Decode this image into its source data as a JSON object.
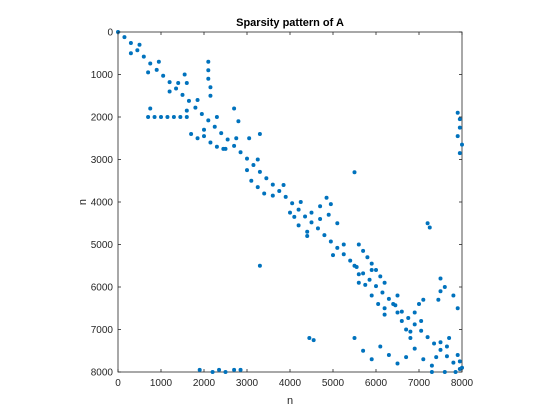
{
  "chart_data": {
    "type": "scatter",
    "title": "Sparsity pattern of A",
    "xlabel": "n",
    "ylabel": "n",
    "xlim": [
      0,
      8000
    ],
    "ylim": [
      0,
      8000
    ],
    "y_reversed": true,
    "xticks": [
      0,
      1000,
      2000,
      3000,
      4000,
      5000,
      6000,
      7000,
      8000
    ],
    "yticks": [
      0,
      1000,
      2000,
      3000,
      4000,
      5000,
      6000,
      7000,
      8000
    ],
    "tick_labels_x": [
      "0",
      "1000",
      "2000",
      "3000",
      "4000",
      "5000",
      "6000",
      "7000",
      "8000"
    ],
    "tick_labels_y": [
      "0",
      "1000",
      "2000",
      "3000",
      "4000",
      "5000",
      "6000",
      "7000",
      "8000"
    ],
    "grid": false,
    "marker_color": "#0072BD",
    "series": [
      {
        "values": [
          {
            "x": 0,
            "y": 0
          },
          {
            "x": 150,
            "y": 120
          },
          {
            "x": 300,
            "y": 260
          },
          {
            "x": 450,
            "y": 430
          },
          {
            "x": 600,
            "y": 580
          },
          {
            "x": 750,
            "y": 740
          },
          {
            "x": 900,
            "y": 890
          },
          {
            "x": 1050,
            "y": 1030
          },
          {
            "x": 1200,
            "y": 1180
          },
          {
            "x": 1350,
            "y": 1330
          },
          {
            "x": 1500,
            "y": 1480
          },
          {
            "x": 1650,
            "y": 1620
          },
          {
            "x": 1800,
            "y": 1780
          },
          {
            "x": 1950,
            "y": 1930
          },
          {
            "x": 2100,
            "y": 2080
          },
          {
            "x": 2250,
            "y": 2230
          },
          {
            "x": 2400,
            "y": 2380
          },
          {
            "x": 2550,
            "y": 2530
          },
          {
            "x": 2700,
            "y": 2680
          },
          {
            "x": 2850,
            "y": 2830
          },
          {
            "x": 3000,
            "y": 2980
          },
          {
            "x": 3150,
            "y": 3130
          },
          {
            "x": 3300,
            "y": 3290
          },
          {
            "x": 3450,
            "y": 3440
          },
          {
            "x": 3600,
            "y": 3590
          },
          {
            "x": 3750,
            "y": 3740
          },
          {
            "x": 3900,
            "y": 3880
          },
          {
            "x": 4050,
            "y": 4030
          },
          {
            "x": 4200,
            "y": 4180
          },
          {
            "x": 4350,
            "y": 4340
          },
          {
            "x": 4500,
            "y": 4480
          },
          {
            "x": 4650,
            "y": 4620
          },
          {
            "x": 4800,
            "y": 4780
          },
          {
            "x": 4950,
            "y": 4930
          },
          {
            "x": 5100,
            "y": 5080
          },
          {
            "x": 5250,
            "y": 5230
          },
          {
            "x": 5400,
            "y": 5380
          },
          {
            "x": 5550,
            "y": 5530
          },
          {
            "x": 5700,
            "y": 5680
          },
          {
            "x": 5850,
            "y": 5830
          },
          {
            "x": 6000,
            "y": 5980
          },
          {
            "x": 6150,
            "y": 6130
          },
          {
            "x": 6300,
            "y": 6280
          },
          {
            "x": 6450,
            "y": 6430
          },
          {
            "x": 6600,
            "y": 6580
          },
          {
            "x": 6750,
            "y": 6730
          },
          {
            "x": 6900,
            "y": 6880
          },
          {
            "x": 7050,
            "y": 7030
          },
          {
            "x": 7200,
            "y": 7180
          },
          {
            "x": 7350,
            "y": 7330
          },
          {
            "x": 7500,
            "y": 7480
          },
          {
            "x": 7650,
            "y": 7630
          },
          {
            "x": 7800,
            "y": 7780
          },
          {
            "x": 7950,
            "y": 7930
          },
          {
            "x": 300,
            "y": 500
          },
          {
            "x": 500,
            "y": 300
          },
          {
            "x": 700,
            "y": 950
          },
          {
            "x": 950,
            "y": 700
          },
          {
            "x": 1200,
            "y": 1400
          },
          {
            "x": 1400,
            "y": 1200
          },
          {
            "x": 1600,
            "y": 1850
          },
          {
            "x": 1850,
            "y": 1600
          },
          {
            "x": 2000,
            "y": 2300
          },
          {
            "x": 2300,
            "y": 2000
          },
          {
            "x": 2500,
            "y": 2750
          },
          {
            "x": 2750,
            "y": 2500
          },
          {
            "x": 3000,
            "y": 3250
          },
          {
            "x": 3250,
            "y": 3000
          },
          {
            "x": 3600,
            "y": 3850
          },
          {
            "x": 3850,
            "y": 3600
          },
          {
            "x": 4000,
            "y": 4250
          },
          {
            "x": 4250,
            "y": 4000
          },
          {
            "x": 4400,
            "y": 4700
          },
          {
            "x": 4700,
            "y": 4400
          },
          {
            "x": 5000,
            "y": 5250
          },
          {
            "x": 5250,
            "y": 5000
          },
          {
            "x": 5600,
            "y": 5900
          },
          {
            "x": 5900,
            "y": 5600
          },
          {
            "x": 6200,
            "y": 6500
          },
          {
            "x": 6500,
            "y": 6200
          },
          {
            "x": 6800,
            "y": 7050
          },
          {
            "x": 7050,
            "y": 6800
          },
          {
            "x": 7400,
            "y": 7650
          },
          {
            "x": 7650,
            "y": 7400
          },
          {
            "x": 700,
            "y": 2000
          },
          {
            "x": 850,
            "y": 2000
          },
          {
            "x": 1000,
            "y": 2000
          },
          {
            "x": 1150,
            "y": 2000
          },
          {
            "x": 1300,
            "y": 2000
          },
          {
            "x": 1450,
            "y": 2000
          },
          {
            "x": 1600,
            "y": 2000
          },
          {
            "x": 750,
            "y": 1800
          },
          {
            "x": 1550,
            "y": 1000
          },
          {
            "x": 1600,
            "y": 1200
          },
          {
            "x": 2100,
            "y": 700
          },
          {
            "x": 2100,
            "y": 900
          },
          {
            "x": 2100,
            "y": 1100
          },
          {
            "x": 2150,
            "y": 1300
          },
          {
            "x": 2150,
            "y": 1500
          },
          {
            "x": 1700,
            "y": 2400
          },
          {
            "x": 1850,
            "y": 2500
          },
          {
            "x": 2000,
            "y": 2450
          },
          {
            "x": 2150,
            "y": 2600
          },
          {
            "x": 2300,
            "y": 2700
          },
          {
            "x": 2450,
            "y": 2750
          },
          {
            "x": 2700,
            "y": 1800
          },
          {
            "x": 2800,
            "y": 2100
          },
          {
            "x": 3050,
            "y": 2500
          },
          {
            "x": 3100,
            "y": 3500
          },
          {
            "x": 3300,
            "y": 2400
          },
          {
            "x": 3250,
            "y": 3650
          },
          {
            "x": 3400,
            "y": 3800
          },
          {
            "x": 4100,
            "y": 4350
          },
          {
            "x": 4200,
            "y": 4550
          },
          {
            "x": 4400,
            "y": 4800
          },
          {
            "x": 4500,
            "y": 4250
          },
          {
            "x": 4700,
            "y": 4100
          },
          {
            "x": 4850,
            "y": 3900
          },
          {
            "x": 4900,
            "y": 4300
          },
          {
            "x": 4950,
            "y": 4050
          },
          {
            "x": 5100,
            "y": 4500
          },
          {
            "x": 5500,
            "y": 3300
          },
          {
            "x": 3300,
            "y": 5500
          },
          {
            "x": 5600,
            "y": 5000
          },
          {
            "x": 5700,
            "y": 5150
          },
          {
            "x": 5800,
            "y": 5300
          },
          {
            "x": 5900,
            "y": 5450
          },
          {
            "x": 6000,
            "y": 5600
          },
          {
            "x": 6100,
            "y": 5750
          },
          {
            "x": 6200,
            "y": 5900
          },
          {
            "x": 5500,
            "y": 5500
          },
          {
            "x": 5600,
            "y": 5700
          },
          {
            "x": 5750,
            "y": 5950
          },
          {
            "x": 5900,
            "y": 6200
          },
          {
            "x": 6050,
            "y": 6400
          },
          {
            "x": 6200,
            "y": 6650
          },
          {
            "x": 6400,
            "y": 6400
          },
          {
            "x": 6500,
            "y": 6600
          },
          {
            "x": 6600,
            "y": 6800
          },
          {
            "x": 6700,
            "y": 7000
          },
          {
            "x": 6800,
            "y": 7200
          },
          {
            "x": 6900,
            "y": 6600
          },
          {
            "x": 7000,
            "y": 6400
          },
          {
            "x": 7100,
            "y": 6300
          },
          {
            "x": 7200,
            "y": 4500
          },
          {
            "x": 7250,
            "y": 4600
          },
          {
            "x": 7500,
            "y": 5800
          },
          {
            "x": 7500,
            "y": 6100
          },
          {
            "x": 7450,
            "y": 6300
          },
          {
            "x": 7600,
            "y": 6000
          },
          {
            "x": 7800,
            "y": 6200
          },
          {
            "x": 7900,
            "y": 6500
          },
          {
            "x": 5500,
            "y": 7200
          },
          {
            "x": 5700,
            "y": 7500
          },
          {
            "x": 5900,
            "y": 7700
          },
          {
            "x": 6100,
            "y": 7400
          },
          {
            "x": 6300,
            "y": 7600
          },
          {
            "x": 6500,
            "y": 7800
          },
          {
            "x": 6700,
            "y": 7650
          },
          {
            "x": 6900,
            "y": 7450
          },
          {
            "x": 7100,
            "y": 7700
          },
          {
            "x": 7300,
            "y": 7850
          },
          {
            "x": 7500,
            "y": 7300
          },
          {
            "x": 7700,
            "y": 7200
          },
          {
            "x": 4450,
            "y": 7200
          },
          {
            "x": 4550,
            "y": 7250
          },
          {
            "x": 7900,
            "y": 1900
          },
          {
            "x": 7950,
            "y": 2050
          },
          {
            "x": 7950,
            "y": 2250
          },
          {
            "x": 7900,
            "y": 2450
          },
          {
            "x": 8000,
            "y": 2650
          },
          {
            "x": 7950,
            "y": 2850
          },
          {
            "x": 1900,
            "y": 7950
          },
          {
            "x": 2200,
            "y": 8000
          },
          {
            "x": 2350,
            "y": 7950
          },
          {
            "x": 2500,
            "y": 8000
          },
          {
            "x": 2700,
            "y": 7950
          },
          {
            "x": 2850,
            "y": 7950
          },
          {
            "x": 7900,
            "y": 7600
          },
          {
            "x": 7950,
            "y": 7750
          },
          {
            "x": 8000,
            "y": 7900
          },
          {
            "x": 7850,
            "y": 8000
          },
          {
            "x": 7600,
            "y": 8000
          },
          {
            "x": 7300,
            "y": 8000
          }
        ]
      }
    ]
  }
}
